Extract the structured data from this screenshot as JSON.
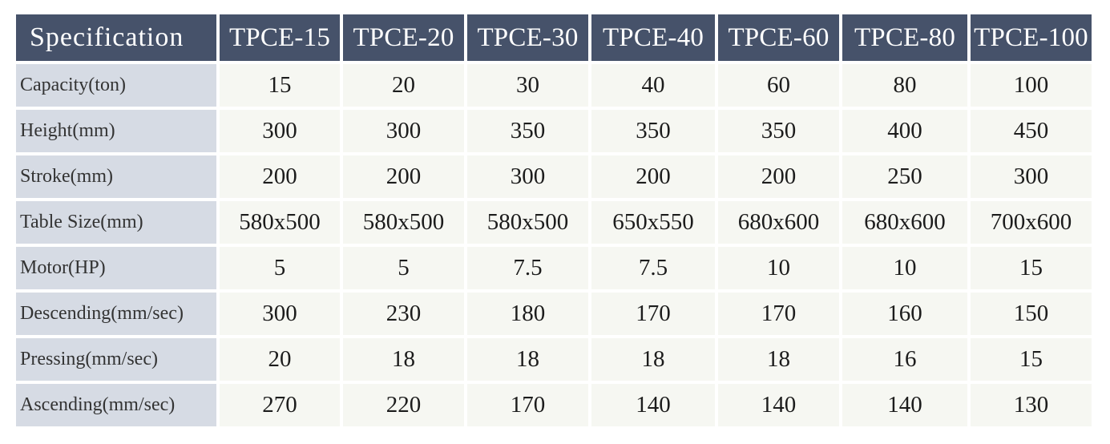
{
  "table": {
    "corner_label": "Specification",
    "models": [
      "TPCE-15",
      "TPCE-20",
      "TPCE-30",
      "TPCE-40",
      "TPCE-60",
      "TPCE-80",
      "TPCE-100"
    ],
    "rows": [
      {
        "label": "Capacity(ton)",
        "values": [
          "15",
          "20",
          "30",
          "40",
          "60",
          "80",
          "100"
        ]
      },
      {
        "label": "Height(mm)",
        "values": [
          "300",
          "300",
          "350",
          "350",
          "350",
          "400",
          "450"
        ]
      },
      {
        "label": "Stroke(mm)",
        "values": [
          "200",
          "200",
          "300",
          "200",
          "200",
          "250",
          "300"
        ]
      },
      {
        "label": "Table Size(mm)",
        "values": [
          "580x500",
          "580x500",
          "580x500",
          "650x550",
          "680x600",
          "680x600",
          "700x600"
        ]
      },
      {
        "label": "Motor(HP)",
        "values": [
          "5",
          "5",
          "7.5",
          "7.5",
          "10",
          "10",
          "15"
        ]
      },
      {
        "label": "Descending(mm/sec)",
        "values": [
          "300",
          "230",
          "180",
          "170",
          "170",
          "160",
          "150"
        ]
      },
      {
        "label": "Pressing(mm/sec)",
        "values": [
          "20",
          "18",
          "18",
          "18",
          "18",
          "16",
          "15"
        ]
      },
      {
        "label": "Ascending(mm/sec)",
        "values": [
          "270",
          "220",
          "170",
          "140",
          "140",
          "140",
          "130"
        ]
      }
    ],
    "colors": {
      "header_bg": "#46526a",
      "header_text": "#ffffff",
      "row_label_bg": "#d6dbe4",
      "cell_bg": "#f6f7f2"
    }
  }
}
